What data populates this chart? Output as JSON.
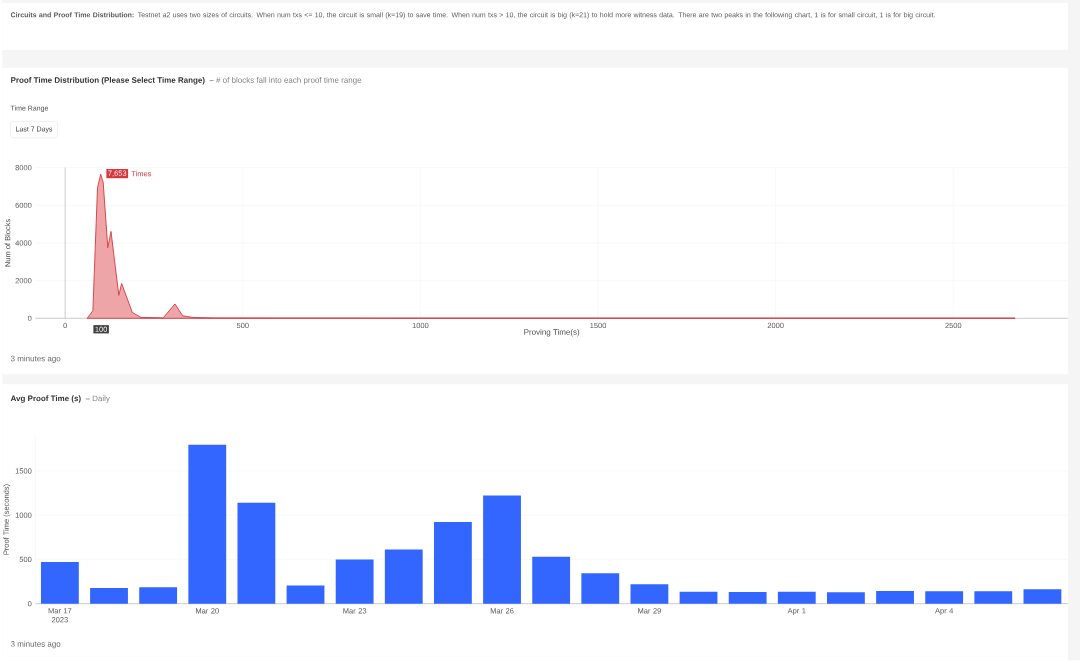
{
  "chart_data": [
    {
      "type": "other",
      "title": "Circuits and Proof Time Distribution:",
      "subtitle": "Testnet a2 uses two sizes of circuits. When num txs <= 10, the circuit is small (k=19) to save time. When num txs > 10, the circuit is big (k=21) to hold more witness data. There are two peaks in the following chart, 1 is for small circuit, 1 is for big circuit."
    },
    {
      "type": "area",
      "title": "Proof Time Distribution (Please Select Time Range)",
      "subtitle": "**–** # of blocks fall into each proof time range",
      "xlabel": "Proving Time(s)",
      "ylabel": "Num of Blocks",
      "color": "#d8373c",
      "x": [
        62,
        78,
        91,
        100,
        107,
        120,
        129,
        141,
        151,
        159,
        189,
        213,
        276,
        309,
        331,
        362,
        420,
        600,
        900,
        1500,
        2100,
        2674
      ],
      "values": [
        0,
        400,
        6930,
        7653,
        7220,
        3750,
        4610,
        2760,
        1220,
        1850,
        310,
        50,
        20,
        760,
        130,
        40,
        20,
        15,
        10,
        10,
        10,
        10
      ],
      "xlim": [
        -84,
        2823
      ],
      "ylim": [
        0,
        8000
      ],
      "xticks": [
        0,
        500,
        1000,
        1500,
        2000,
        2500
      ],
      "yticks": [
        0,
        2000,
        4000,
        6000,
        8000
      ],
      "grid": true,
      "annotations": [
        "Time Range",
        "Last 7 Days",
        "7,653",
        "Times",
        "100",
        "3 minutes ago"
      ]
    },
    {
      "type": "bar",
      "title": "Avg Proof Time (s)",
      "subtitle": "**–** Daily",
      "ylabel": "Proof Time (seconds)",
      "color": "#3366ff",
      "x": [
        "2023-03-17",
        "2023-03-18",
        "2023-03-19",
        "2023-03-20",
        "2023-03-21",
        "2023-03-22",
        "2023-03-23",
        "2023-03-24",
        "2023-03-25",
        "2023-03-26",
        "2023-03-27",
        "2023-03-28",
        "2023-03-29",
        "2023-03-30",
        "2023-03-31",
        "2023-04-01",
        "2023-04-02",
        "2023-04-03",
        "2023-04-04",
        "2023-04-05",
        "2023-04-06"
      ],
      "values": [
        472,
        178,
        186,
        1797,
        1140,
        205,
        499,
        611,
        924,
        1221,
        530,
        344,
        220,
        135,
        131,
        135,
        128,
        143,
        139,
        139,
        162
      ],
      "xlim": [
        "2023-03-16T12:00",
        "2023-04-06T12:30"
      ],
      "ylim": [
        0,
        1900
      ],
      "xticks": [
        {
          "value": "2023-03-17",
          "label": "Mar 17 2023"
        },
        {
          "value": "2023-03-20",
          "label": "Mar 20"
        },
        {
          "value": "2023-03-23",
          "label": "Mar 23"
        },
        {
          "value": "2023-03-26",
          "label": "Mar 26"
        },
        {
          "value": "2023-03-29",
          "label": "Mar 29"
        },
        {
          "value": "2023-04-01",
          "label": "Apr 1"
        },
        {
          "value": "2023-04-04",
          "label": "Apr 4"
        }
      ],
      "yticks": [
        0,
        500,
        1000,
        1500
      ],
      "grid": "y",
      "annotations": [
        "3 minutes ago"
      ]
    }
  ]
}
